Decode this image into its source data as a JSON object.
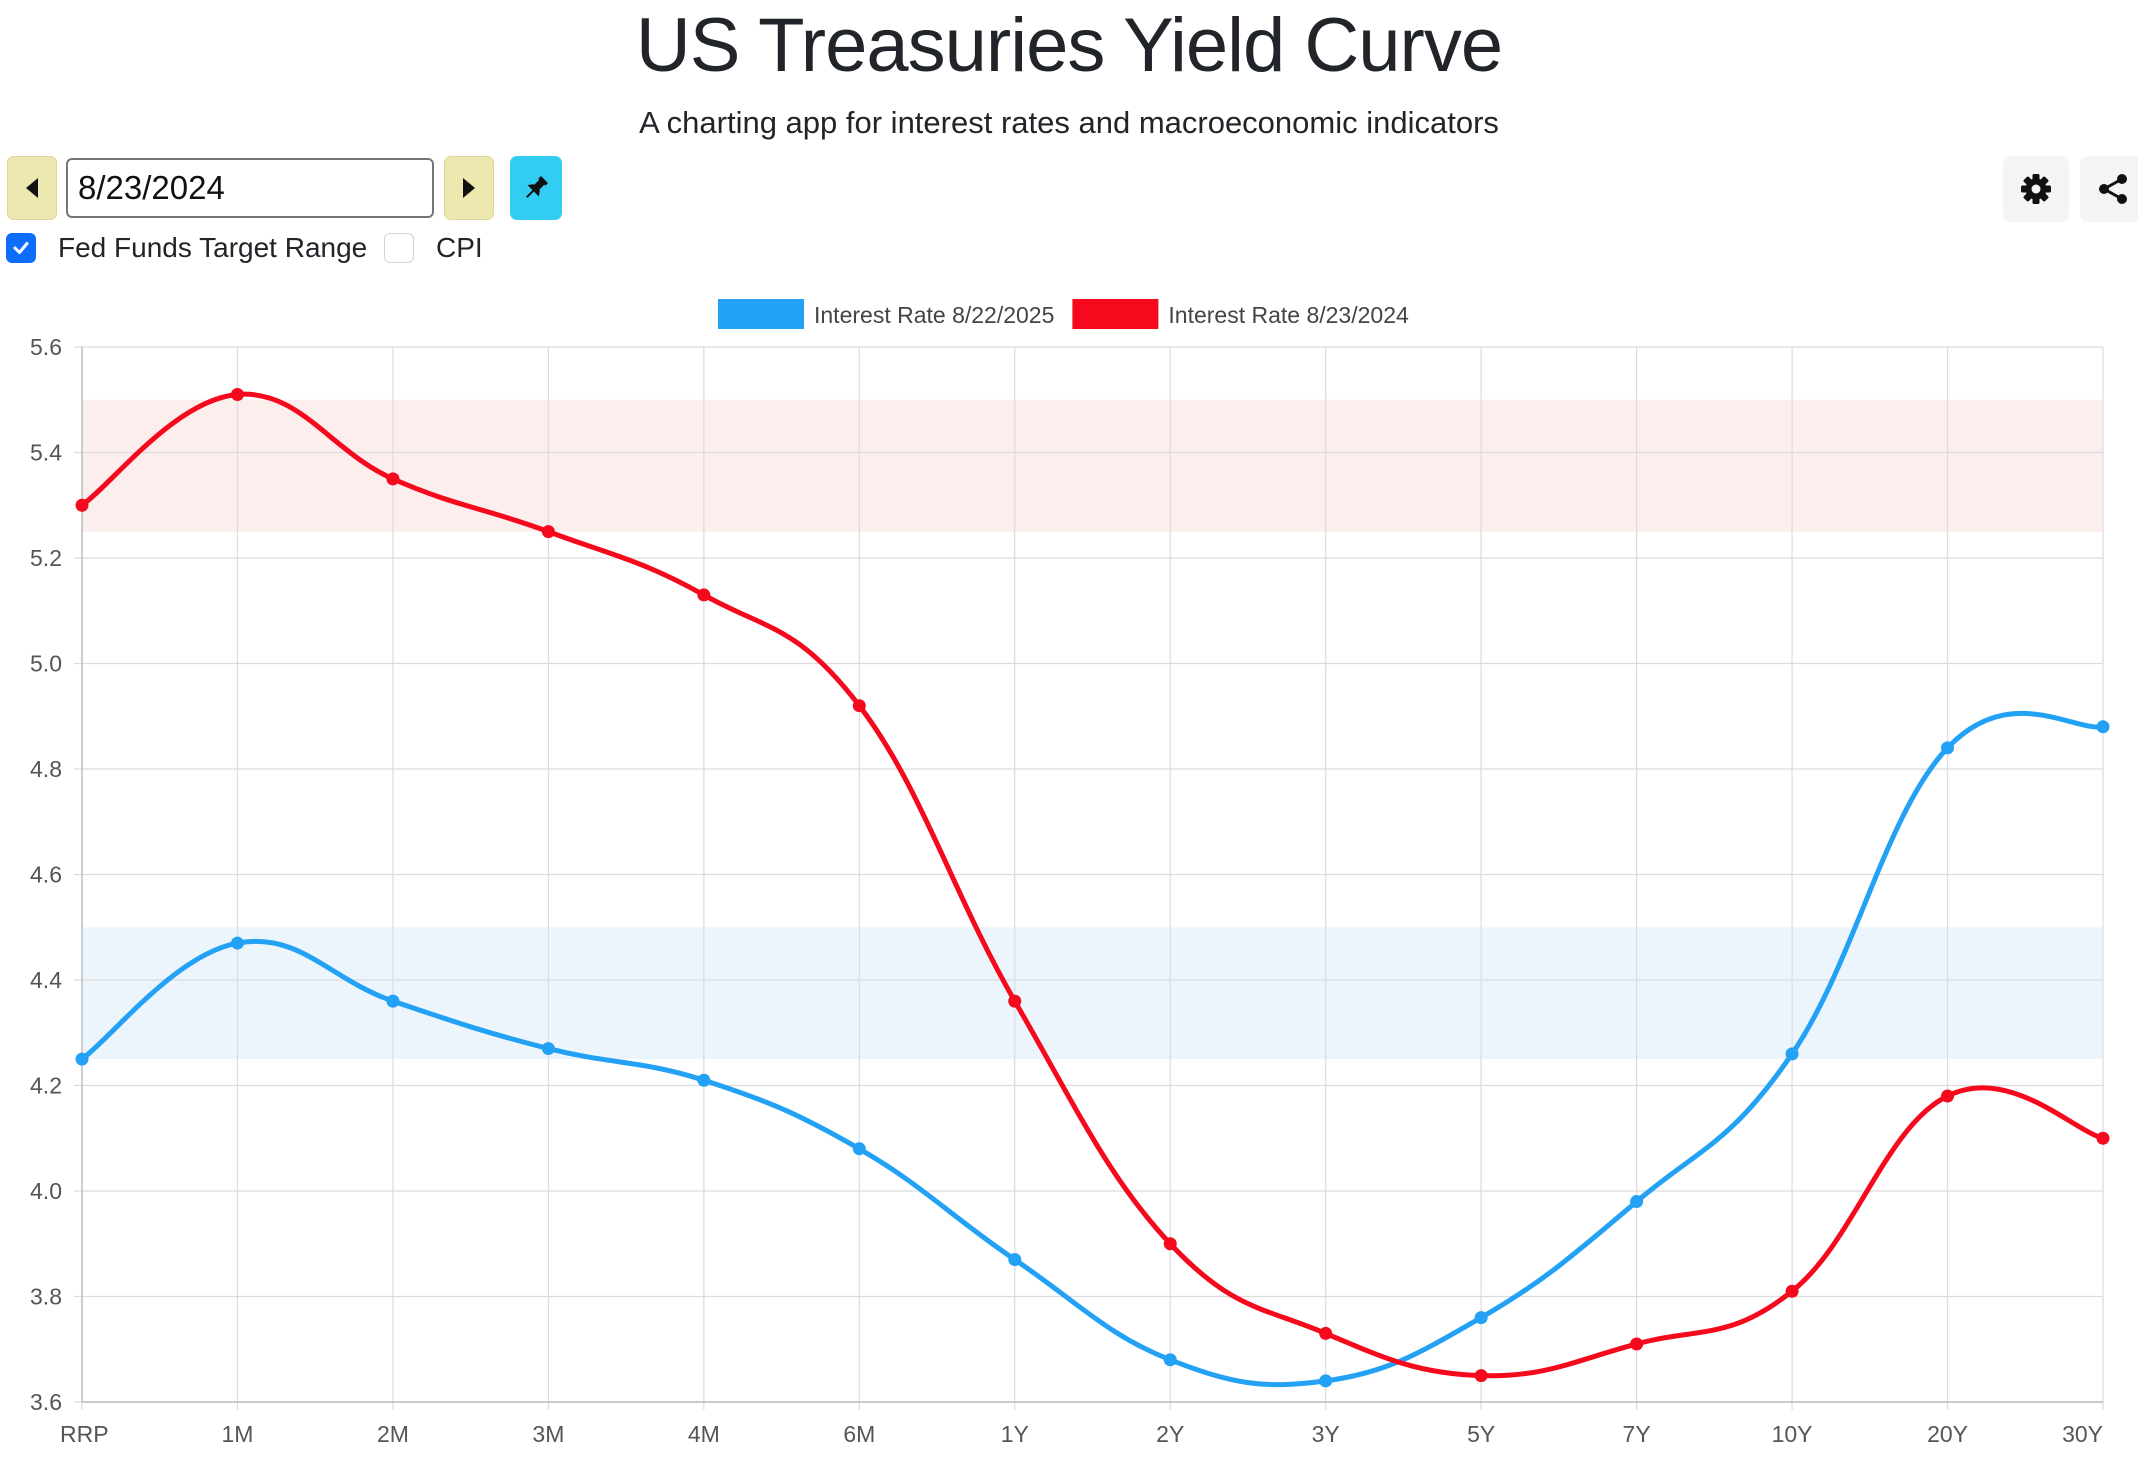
{
  "header": {
    "title": "US Treasuries Yield Curve",
    "subtitle": "A charting app for interest rates and macroeconomic indicators"
  },
  "controls": {
    "date_value": "8/23/2024",
    "prev_icon": "caret-left-icon",
    "next_icon": "caret-right-icon",
    "pin_icon": "pin-icon",
    "settings_icon": "gear-icon",
    "share_icon": "share-icon",
    "pin_color": "#33ccf2",
    "nav_color": "#ede8b0"
  },
  "options": {
    "fed_funds": {
      "label": "Fed Funds Target Range",
      "checked": true
    },
    "cpi": {
      "label": "CPI",
      "checked": false
    }
  },
  "chart_data": {
    "type": "line",
    "title": "",
    "xlabel": "",
    "ylabel": "",
    "categories": [
      "RRP",
      "1M",
      "2M",
      "3M",
      "4M",
      "6M",
      "1Y",
      "2Y",
      "3Y",
      "5Y",
      "7Y",
      "10Y",
      "20Y",
      "30Y"
    ],
    "ylim": [
      3.6,
      5.6
    ],
    "yticks": [
      5.6,
      5.4,
      5.2,
      5.0,
      4.8,
      4.6,
      4.4,
      4.2,
      4.0,
      3.8,
      3.6
    ],
    "grid": true,
    "legend_position": "top-center",
    "series": [
      {
        "name": "Interest Rate 8/22/2025",
        "color": "#22a1f5",
        "band_color": "#edf5fc",
        "fed_funds_band": [
          4.25,
          4.5
        ],
        "values": [
          4.25,
          4.47,
          4.36,
          4.27,
          4.21,
          4.08,
          3.87,
          3.68,
          3.64,
          3.76,
          3.98,
          4.26,
          4.84,
          4.88
        ]
      },
      {
        "name": "Interest Rate 8/23/2024",
        "color": "#f5091c",
        "band_color": "#fdeeee",
        "fed_funds_band": [
          5.25,
          5.5
        ],
        "values": [
          5.3,
          5.51,
          5.35,
          5.25,
          5.13,
          4.92,
          4.36,
          3.9,
          3.73,
          3.65,
          3.71,
          3.81,
          4.18,
          4.1
        ]
      }
    ]
  }
}
